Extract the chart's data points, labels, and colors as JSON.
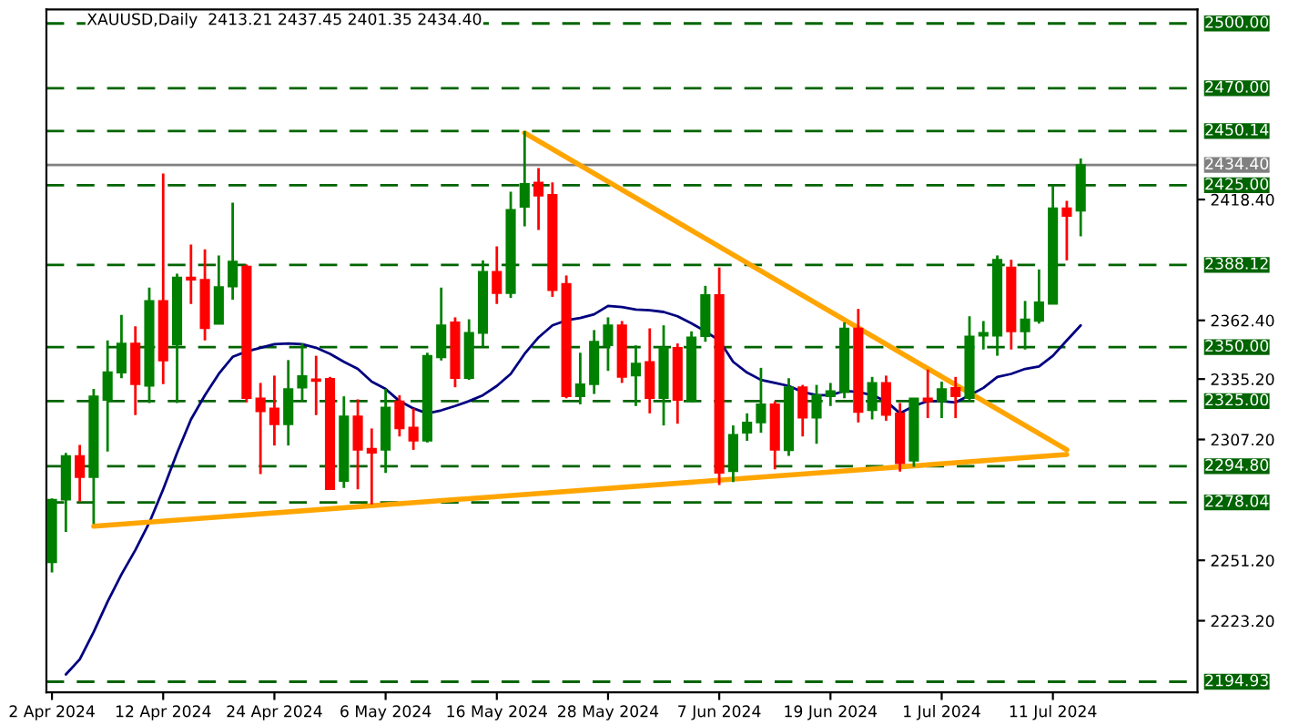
{
  "chart_data": {
    "type": "candlestick",
    "title": "XAUUSD,Daily  2413.21 2437.45 2401.35 2434.40",
    "categories": [
      "2 Apr 2024",
      null,
      null,
      null,
      null,
      null,
      null,
      null,
      "12 Apr 2024",
      null,
      null,
      null,
      null,
      null,
      null,
      null,
      "24 Apr 2024",
      null,
      null,
      null,
      null,
      null,
      null,
      null,
      "6 May 2024",
      null,
      null,
      null,
      null,
      null,
      null,
      null,
      "16 May 2024",
      null,
      null,
      null,
      null,
      null,
      null,
      null,
      "28 May 2024",
      null,
      null,
      null,
      null,
      null,
      null,
      null,
      "7 Jun 2024",
      null,
      null,
      null,
      null,
      null,
      null,
      null,
      "19 Jun 2024",
      null,
      null,
      null,
      null,
      null,
      null,
      null,
      "1 Jul 2024",
      null,
      null,
      null,
      null,
      null,
      null,
      null,
      "11 Jul 2024",
      null,
      null
    ],
    "ohlc": [
      [
        2250.3,
        2279.9,
        2245.6,
        2279.3
      ],
      [
        2279.3,
        2301.0,
        2264.4,
        2299.6
      ],
      [
        2299.6,
        2304.7,
        2278.5,
        2289.7
      ],
      [
        2289.7,
        2330.6,
        2268.1,
        2327.2
      ],
      [
        2325.5,
        2353.1,
        2301.6,
        2338.4
      ],
      [
        2338.2,
        2364.9,
        2335.6,
        2351.7
      ],
      [
        2351.7,
        2359.6,
        2318.5,
        2332.8
      ],
      [
        2332.0,
        2377.6,
        2324.1,
        2371.4
      ],
      [
        2371.4,
        2430.5,
        2332.8,
        2343.8
      ],
      [
        2351.1,
        2384.0,
        2324.1,
        2382.3
      ],
      [
        2382.3,
        2397.5,
        2370.0,
        2381.2
      ],
      [
        2381.2,
        2395.3,
        2353.1,
        2358.7
      ],
      [
        2360.7,
        2392.5,
        2360.7,
        2377.9
      ],
      [
        2378.0,
        2417.0,
        2372.0,
        2389.7
      ],
      [
        2387.4,
        2388.3,
        2324.4,
        2326.3
      ],
      [
        2326.3,
        2333.4,
        2291.2,
        2320.2
      ],
      [
        2321.6,
        2336.8,
        2304.4,
        2314.2
      ],
      [
        2314.2,
        2344.0,
        2304.4,
        2330.6
      ],
      [
        2331.2,
        2351.7,
        2325.0,
        2336.6
      ],
      [
        2335.1,
        2346.0,
        2318.5,
        2334.3
      ],
      [
        2335.3,
        2336.2,
        2284.1,
        2284.1
      ],
      [
        2287.9,
        2327.2,
        2284.7,
        2317.9
      ],
      [
        2317.9,
        2325.8,
        2284.1,
        2302.4
      ],
      [
        2302.9,
        2312.3,
        2277.1,
        2301.0
      ],
      [
        2302.4,
        2330.6,
        2291.7,
        2322.1
      ],
      [
        2324.9,
        2327.7,
        2308.6,
        2312.3
      ],
      [
        2312.8,
        2321.6,
        2302.4,
        2306.6
      ],
      [
        2306.6,
        2347.4,
        2305.8,
        2346.0
      ],
      [
        2345.2,
        2377.6,
        2343.8,
        2360.1
      ],
      [
        2361.5,
        2363.8,
        2331.4,
        2335.6
      ],
      [
        2335.6,
        2362.9,
        2334.8,
        2356.7
      ],
      [
        2356.5,
        2390.2,
        2350.3,
        2384.9
      ],
      [
        2384.9,
        2396.7,
        2370.0,
        2375.0
      ],
      [
        2375.0,
        2422.0,
        2372.8,
        2413.6
      ],
      [
        2415.0,
        2450.1,
        2406.0,
        2425.7
      ],
      [
        2426.3,
        2433.0,
        2404.3,
        2420.1
      ],
      [
        2420.6,
        2426.3,
        2373.3,
        2376.4
      ],
      [
        2379.3,
        2383.2,
        2326.3,
        2327.2
      ],
      [
        2327.2,
        2347.4,
        2323.5,
        2332.8
      ],
      [
        2332.8,
        2357.9,
        2328.3,
        2352.5
      ],
      [
        2350.8,
        2363.8,
        2339.0,
        2360.1
      ],
      [
        2360.1,
        2362.1,
        2333.4,
        2336.2
      ],
      [
        2336.8,
        2350.8,
        2322.7,
        2342.4
      ],
      [
        2343.2,
        2358.7,
        2319.3,
        2326.3
      ],
      [
        2326.3,
        2360.1,
        2313.7,
        2349.7
      ],
      [
        2349.7,
        2351.7,
        2314.5,
        2325.5
      ],
      [
        2325.0,
        2357.3,
        2324.4,
        2354.5
      ],
      [
        2355.0,
        2378.4,
        2352.5,
        2374.2
      ],
      [
        2374.2,
        2386.9,
        2286.1,
        2291.7
      ],
      [
        2292.5,
        2313.7,
        2287.5,
        2309.4
      ],
      [
        2310.3,
        2319.3,
        2306.6,
        2315.1
      ],
      [
        2315.1,
        2340.4,
        2310.3,
        2323.5
      ],
      [
        2323.5,
        2324.9,
        2293.4,
        2302.4
      ],
      [
        2302.2,
        2335.6,
        2299.6,
        2331.4
      ],
      [
        2331.4,
        2332.5,
        2308.6,
        2317.3
      ],
      [
        2317.3,
        2332.5,
        2305.2,
        2327.7
      ],
      [
        2327.2,
        2333.4,
        2322.7,
        2329.7
      ],
      [
        2329.1,
        2361.5,
        2326.3,
        2358.7
      ],
      [
        2358.7,
        2367.7,
        2315.1,
        2319.9
      ],
      [
        2320.7,
        2336.2,
        2316.5,
        2333.4
      ],
      [
        2333.4,
        2336.8,
        2315.9,
        2318.5
      ],
      [
        2319.3,
        2324.1,
        2292.3,
        2296.2
      ],
      [
        2297.3,
        2326.3,
        2294.5,
        2326.3
      ],
      [
        2326.3,
        2339.6,
        2317.1,
        2324.9
      ],
      [
        2324.9,
        2334.0,
        2317.1,
        2330.6
      ],
      [
        2331.1,
        2336.2,
        2317.1,
        2327.2
      ],
      [
        2326.3,
        2364.3,
        2325.0,
        2355.0
      ],
      [
        2355.3,
        2362.1,
        2348.9,
        2356.7
      ],
      [
        2355.3,
        2392.5,
        2346.0,
        2390.5
      ],
      [
        2386.9,
        2390.5,
        2348.9,
        2357.3
      ],
      [
        2357.3,
        2371.4,
        2348.9,
        2362.9
      ],
      [
        2362.1,
        2386.0,
        2360.9,
        2370.8
      ],
      [
        2370.0,
        2424.9,
        2370.0,
        2414.4
      ],
      [
        2414.4,
        2417.8,
        2390.2,
        2410.8
      ],
      [
        2413.21,
        2437.45,
        2401.35,
        2434.4
      ]
    ],
    "colors": [
      "#008000",
      "#008000",
      "#ff0000",
      "#008000",
      "#008000",
      "#008000",
      "#ff0000",
      "#008000",
      "#ff0000",
      "#008000",
      "#ff0000",
      "#ff0000",
      "#008000",
      "#008000",
      "#ff0000",
      "#ff0000",
      "#ff0000",
      "#008000",
      "#008000",
      "#ff0000",
      "#ff0000",
      "#008000",
      "#ff0000",
      "#ff0000",
      "#008000",
      "#ff0000",
      "#ff0000",
      "#008000",
      "#008000",
      "#ff0000",
      "#008000",
      "#008000",
      "#ff0000",
      "#008000",
      "#008000",
      "#ff0000",
      "#ff0000",
      "#ff0000",
      "#008000",
      "#008000",
      "#008000",
      "#ff0000",
      "#008000",
      "#ff0000",
      "#008000",
      "#ff0000",
      "#008000",
      "#008000",
      "#ff0000",
      "#008000",
      "#008000",
      "#008000",
      "#ff0000",
      "#008000",
      "#ff0000",
      "#008000",
      "#008000",
      "#008000",
      "#ff0000",
      "#008000",
      "#ff0000",
      "#ff0000",
      "#008000",
      "#ff0000",
      "#008000",
      "#ff0000",
      "#008000",
      "#008000",
      "#008000",
      "#ff0000",
      "#008000",
      "#008000",
      "#008000",
      "#ff0000",
      "#008000"
    ],
    "series": [
      {
        "type": "line",
        "color": "#000080",
        "values": [
          null,
          2198.3,
          2205.3,
          2218.0,
          2232.0,
          2244.7,
          2256.0,
          2268.6,
          2284.1,
          2301.0,
          2316.5,
          2327.7,
          2337.6,
          2345.5,
          2348.0,
          2349.7,
          2351.4,
          2351.7,
          2351.4,
          2349.7,
          2346.9,
          2343.2,
          2339.9,
          2334.0,
          2330.6,
          2325.0,
          2321.6,
          2319.3,
          2320.7,
          2322.7,
          2325.0,
          2327.7,
          2332.0,
          2337.6,
          2346.9,
          2354.5,
          2360.1,
          2362.4,
          2363.5,
          2365.2,
          2369.1,
          2368.6,
          2367.4,
          2367.1,
          2366.3,
          2364.3,
          2361.0,
          2357.3,
          2353.1,
          2343.2,
          2338.2,
          2334.8,
          2333.4,
          2332.0,
          2329.2,
          2327.7,
          2327.7,
          2329.7,
          2329.2,
          2327.7,
          2325.0,
          2319.3,
          2322.7,
          2325.0,
          2325.0,
          2324.4,
          2327.7,
          2331.1,
          2336.2,
          2337.6,
          2339.9,
          2341.0,
          2346.0,
          2353.1,
          2360.1
        ]
      },
      {
        "type": "line",
        "color": "#ffa500",
        "values": [
          null,
          null,
          null,
          null,
          null,
          null,
          null,
          null,
          null,
          null,
          null,
          null,
          null,
          null,
          null,
          null,
          null,
          null,
          null,
          null,
          null,
          null,
          null,
          null,
          null,
          null,
          null,
          null,
          null,
          null,
          null,
          null,
          null,
          null,
          2449.3,
          null,
          null,
          null,
          null,
          null,
          null,
          null,
          null,
          null,
          null,
          null,
          null,
          null,
          null,
          null,
          null,
          null,
          null,
          null,
          null,
          null,
          null,
          null,
          null,
          null,
          null,
          null,
          null,
          null,
          null,
          null,
          null,
          null,
          null,
          null,
          null,
          null,
          null,
          2302.4,
          null
        ]
      },
      {
        "type": "line",
        "color": "#ffa500",
        "values": [
          null,
          null,
          null,
          2267.0,
          null,
          null,
          null,
          null,
          null,
          null,
          null,
          null,
          null,
          null,
          null,
          null,
          null,
          null,
          null,
          null,
          null,
          null,
          null,
          null,
          null,
          null,
          null,
          null,
          null,
          null,
          null,
          null,
          null,
          null,
          null,
          null,
          null,
          null,
          null,
          null,
          null,
          null,
          null,
          null,
          null,
          null,
          null,
          null,
          null,
          null,
          null,
          null,
          null,
          null,
          null,
          null,
          null,
          null,
          null,
          null,
          null,
          null,
          null,
          null,
          null,
          null,
          null,
          null,
          null,
          null,
          null,
          null,
          null,
          2300.2,
          null
        ]
      }
    ],
    "ylim": [
      2190,
      2506.5
    ],
    "yticks": [
      {
        "value": 2223.2,
        "label": "2223.20"
      },
      {
        "value": 2251.2,
        "label": "2251.20"
      },
      {
        "value": 2307.2,
        "label": "2307.20"
      },
      {
        "value": 2335.2,
        "label": "2335.20"
      },
      {
        "value": 2362.4,
        "label": "2362.40"
      },
      {
        "value": 2418.4,
        "label": "2418.40"
      }
    ],
    "ref_lines": [
      {
        "axis": "y",
        "value": 2500.0,
        "label": "2500.00",
        "color": "#006400",
        "line_style": "dashed"
      },
      {
        "axis": "y",
        "value": 2470.0,
        "label": "2470.00",
        "color": "#006400",
        "line_style": "dashed"
      },
      {
        "axis": "y",
        "value": 2450.14,
        "label": "2450.14",
        "color": "#006400",
        "line_style": "dashed"
      },
      {
        "axis": "y",
        "value": 2434.4,
        "label": "2434.40",
        "color": "#808080",
        "line_style": "solid"
      },
      {
        "axis": "y",
        "value": 2425.0,
        "label": "2425.00",
        "color": "#006400",
        "line_style": "dashed"
      },
      {
        "axis": "y",
        "value": 2388.12,
        "label": "2388.12",
        "color": "#006400",
        "line_style": "dashed"
      },
      {
        "axis": "y",
        "value": 2350.0,
        "label": "2350.00",
        "color": "#006400",
        "line_style": "dashed"
      },
      {
        "axis": "y",
        "value": 2325.0,
        "label": "2325.00",
        "color": "#006400",
        "line_style": "dashed"
      },
      {
        "axis": "y",
        "value": 2294.8,
        "label": "2294.80",
        "color": "#006400",
        "line_style": "dashed"
      },
      {
        "axis": "y",
        "value": 2278.04,
        "label": "2278.04",
        "color": "#006400",
        "line_style": "dashed"
      },
      {
        "axis": "y",
        "value": 2194.93,
        "label": "2194.93",
        "color": "#006400",
        "line_style": "dashed"
      }
    ],
    "grid": false,
    "legend": false
  }
}
